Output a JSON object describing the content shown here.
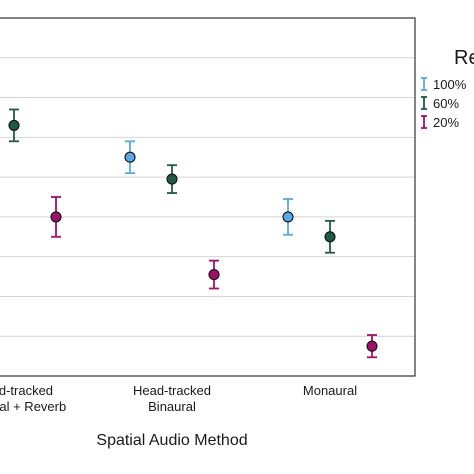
{
  "chart_data": {
    "type": "scatter",
    "xlabel": "Spatial Audio Method",
    "categories": [
      "Head-tracked Binaural + Reverb",
      "Head-tracked Binaural",
      "Monaural"
    ],
    "category_tick_lines": [
      [
        "Head-tracked",
        "Binaural + Reverb"
      ],
      [
        "Head-tracked",
        "Binaural"
      ],
      [
        "Monaural"
      ]
    ],
    "ylim": [
      0,
      9
    ],
    "y_gridlines": [
      1,
      2,
      3,
      4,
      5,
      6,
      7,
      8
    ],
    "grid": "horizontal",
    "legend": {
      "title": "Re",
      "placement": "right",
      "entries": [
        "100%",
        "60%",
        "20%"
      ]
    },
    "series": [
      {
        "name": "100%",
        "color": "#5aa9e6",
        "values": [
          null,
          5.5,
          4.0
        ],
        "errors": [
          null,
          0.4,
          0.45
        ]
      },
      {
        "name": "60%",
        "color": "#1f5a48",
        "values": [
          6.3,
          4.95,
          3.5
        ],
        "errors": [
          0.4,
          0.35,
          0.4
        ]
      },
      {
        "name": "20%",
        "color": "#a0106a",
        "values": [
          4.0,
          2.55,
          0.75
        ],
        "errors": [
          0.5,
          0.35,
          0.28
        ]
      }
    ]
  }
}
